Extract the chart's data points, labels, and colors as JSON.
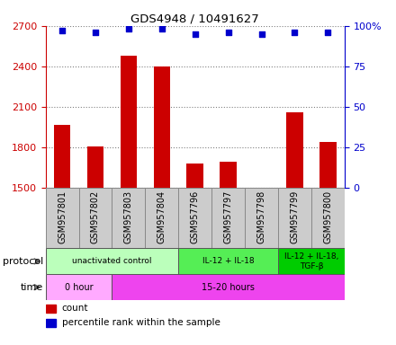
{
  "title": "GDS4948 / 10491627",
  "samples": [
    "GSM957801",
    "GSM957802",
    "GSM957803",
    "GSM957804",
    "GSM957796",
    "GSM957797",
    "GSM957798",
    "GSM957799",
    "GSM957800"
  ],
  "counts": [
    1970,
    1810,
    2480,
    2400,
    1680,
    1695,
    1505,
    2060,
    1840
  ],
  "percentile_ranks": [
    97,
    96,
    98,
    98,
    95,
    96,
    95,
    96,
    96
  ],
  "ylim_left": [
    1500,
    2700
  ],
  "ylim_right": [
    0,
    100
  ],
  "yticks_left": [
    1500,
    1800,
    2100,
    2400,
    2700
  ],
  "yticks_right": [
    0,
    25,
    50,
    75,
    100
  ],
  "bar_color": "#cc0000",
  "dot_color": "#0000cc",
  "protocol_groups": [
    {
      "label": "unactivated control",
      "start": 0,
      "end": 4,
      "color": "#bbffbb"
    },
    {
      "label": "IL-12 + IL-18",
      "start": 4,
      "end": 7,
      "color": "#55ee55"
    },
    {
      "label": "IL-12 + IL-18,\nTGF-β",
      "start": 7,
      "end": 9,
      "color": "#00cc00"
    }
  ],
  "time_groups": [
    {
      "label": "0 hour",
      "start": 0,
      "end": 2,
      "color": "#ffaaff"
    },
    {
      "label": "15-20 hours",
      "start": 2,
      "end": 9,
      "color": "#ee44ee"
    }
  ],
  "sample_box_color": "#cccccc",
  "sample_box_edge": "#888888",
  "legend_count_color": "#cc0000",
  "legend_pct_color": "#0000cc"
}
